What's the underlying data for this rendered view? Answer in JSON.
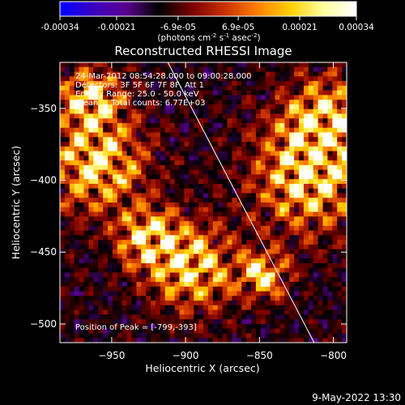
{
  "colors": {
    "background": "#000000",
    "foreground": "#ffffff"
  },
  "colorbar": {
    "tick_labels": [
      "-0.00034",
      "-0.00021",
      "-6.9e-05",
      "6.9e-05",
      "0.00021",
      "0.00034"
    ],
    "tick_values": [
      -0.00034,
      -0.00021,
      -6.9e-05,
      6.9e-05,
      0.00021,
      0.00034
    ],
    "range": [
      -0.00034,
      0.00034
    ],
    "units_label": "(photons cm",
    "units_exp1": "-2",
    "units_mid": " s",
    "units_exp2": "-1",
    "units_end": " asec",
    "units_exp3": "-2",
    "units_close": ")",
    "gradient": [
      "#0000ff",
      "#3a00c0",
      "#5a0090",
      "#000000",
      "#7a0000",
      "#c83000",
      "#ff8000",
      "#ffd000",
      "#ffffa0",
      "#ffffff"
    ]
  },
  "annotations": {
    "time_range": "24-Mar-2012 08:54:28.000 to 09:00:28.000",
    "detectors": "Detectors: 3F 5F 6F 7F 8F, Att 1",
    "energy": "Energy Range: 25.0 - 50.0 keV",
    "clean": "Clean     Total counts: 6.77E+03",
    "peak": "Position of Peak = [-799,-393]"
  },
  "footer_timestamp": "9-May-2022 13:30",
  "chart_data": {
    "type": "heatmap",
    "title": "Reconstructed RHESSI Image",
    "xlabel": "Heliocentric X (arcsec)",
    "ylabel": "Heliocentric Y (arcsec)",
    "xlim": [
      -985,
      -791
    ],
    "ylim": [
      -513,
      -318
    ],
    "x_ticks": [
      -950,
      -900,
      -850,
      -800
    ],
    "x_tick_labels": [
      "−950",
      "−900",
      "−850",
      "−800"
    ],
    "y_ticks": [
      -350,
      -400,
      -450,
      -500
    ],
    "y_tick_labels": [
      "−350",
      "−400",
      "−450",
      "−500"
    ],
    "colormap": "blue-purple-black-red-yellow-white",
    "peak_position": [
      -799,
      -393
    ],
    "limb_line": [
      [
        -912,
        -318
      ],
      [
        -813,
        -513
      ]
    ]
  }
}
